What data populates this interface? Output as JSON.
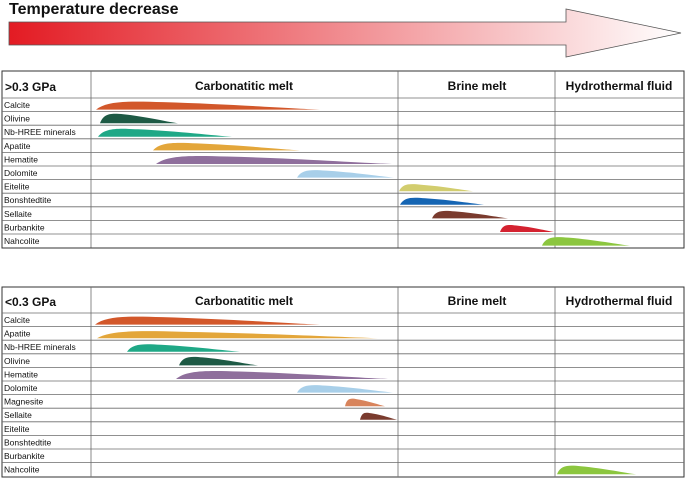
{
  "arrow": {
    "label": "Temperature decrease",
    "color_start": "#e31b23",
    "color_end": "#ffffff"
  },
  "panels": [
    {
      "pressure_label": ">0.3  GPa",
      "columns": [
        "Carbonatitic melt",
        "Brine melt",
        "Hydrothermal fluid"
      ],
      "minerals": [
        {
          "name": "Calcite",
          "color": "#d2572a"
        },
        {
          "name": "Olivine",
          "color": "#1e5a45"
        },
        {
          "name": "Nb-HREE minerals",
          "color": "#1fa886"
        },
        {
          "name": "Apatite",
          "color": "#e3a63a"
        },
        {
          "name": "Hematite",
          "color": "#8f6f9c"
        },
        {
          "name": "Dolomite",
          "color": "#a8cfe9"
        },
        {
          "name": "Eitelite",
          "color": "#d2cd6e"
        },
        {
          "name": "Bonshtedtite",
          "color": "#1565b3"
        },
        {
          "name": "Sellaite",
          "color": "#7a3b2e"
        },
        {
          "name": "Burbankite",
          "color": "#d42230"
        },
        {
          "name": "Nahcolite",
          "color": "#8cc63f"
        }
      ]
    },
    {
      "pressure_label": "<0.3  GPa",
      "columns": [
        "Carbonatitic melt",
        "Brine melt",
        "Hydrothermal fluid"
      ],
      "minerals": [
        {
          "name": "Calcite",
          "color": "#d2572a"
        },
        {
          "name": "Apatite",
          "color": "#e3a63a"
        },
        {
          "name": "Nb-HREE minerals",
          "color": "#1fa886"
        },
        {
          "name": "Olivine",
          "color": "#1e5a45"
        },
        {
          "name": "Hematite",
          "color": "#8f6f9c"
        },
        {
          "name": "Dolomite",
          "color": "#a8cfe9"
        },
        {
          "name": "Magnesite",
          "color": "#d8845c"
        },
        {
          "name": "Sellaite",
          "color": "#7a3b2e"
        },
        {
          "name": "Eitelite",
          "color": ""
        },
        {
          "name": "Bonshtedtite",
          "color": ""
        },
        {
          "name": "Burbankite",
          "color": ""
        },
        {
          "name": "Nahcolite",
          "color": "#8cc63f"
        }
      ]
    }
  ]
}
